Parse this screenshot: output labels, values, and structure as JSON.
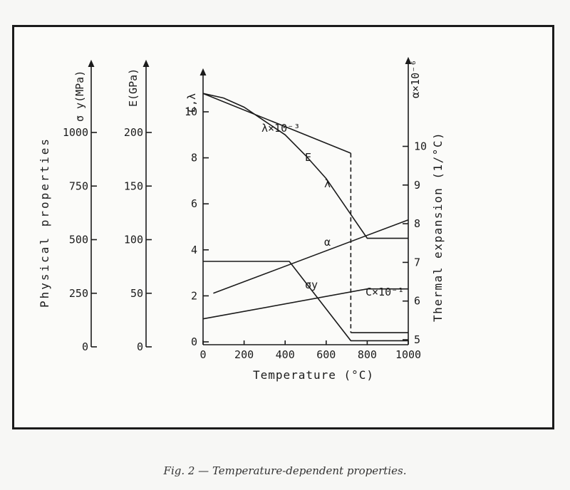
{
  "caption": "Fig. 2 — Temperature-dependent properties.",
  "colors": {
    "ink": "#1b1b1b",
    "frame": "#1b1b1b",
    "paper": "#fbfbf9"
  },
  "labels": {
    "ylabel_left": "Physical properties",
    "ylabel_right": "Thermal expansion (1/°C)",
    "xlabel": "Temperature (°C)",
    "sigma_axis_title": "σ y(MPa)",
    "e_axis_title": "E(GPa)",
    "c_axis_title": "C,λ",
    "alpha_axis_title": "α×10⁻⁶"
  },
  "chart_data": {
    "type": "line",
    "xlabel": "Temperature (°C)",
    "xlim": [
      0,
      1000
    ],
    "x_ticks": [
      "0",
      "200",
      "400",
      "600",
      "800",
      "1000"
    ],
    "axes": [
      {
        "name": "σ y(MPa)",
        "side": "left",
        "ylim": [
          0,
          1000
        ],
        "ticks": [
          "0",
          "250",
          "500",
          "750",
          "1000"
        ]
      },
      {
        "name": "E(GPa)",
        "side": "left",
        "ylim": [
          0,
          200
        ],
        "ticks": [
          "0",
          "50",
          "100",
          "150",
          "200"
        ]
      },
      {
        "name": "C,λ",
        "side": "left",
        "ylim": [
          0,
          11
        ],
        "ticks": [
          "0",
          "2",
          "4",
          "6",
          "8",
          "10"
        ]
      },
      {
        "name": "α×10⁻⁶",
        "side": "right",
        "ylim": [
          5,
          11.5
        ],
        "ticks": [
          "5",
          "6",
          "7",
          "8",
          "9",
          "10"
        ]
      }
    ],
    "series": [
      {
        "name": "E",
        "label": "E",
        "axis": "C,λ",
        "x": [
          0,
          720,
          720,
          1000
        ],
        "y": [
          10.8,
          8.2,
          0.4,
          0.4
        ],
        "dashed_segment": 1
      },
      {
        "name": "λ×10⁻³",
        "label": "λ",
        "axis": "C,λ",
        "x": [
          0,
          100,
          200,
          300,
          400,
          500,
          600,
          700,
          800,
          1000
        ],
        "y": [
          10.8,
          10.6,
          10.2,
          9.6,
          9.0,
          8.1,
          7.1,
          5.8,
          4.5,
          4.5
        ]
      },
      {
        "name": "α",
        "label": "α",
        "axis": "α×10⁻⁶",
        "x": [
          50,
          1000
        ],
        "y": [
          6.2,
          8.1
        ]
      },
      {
        "name": "σy",
        "label": "σy",
        "axis": "C,λ",
        "x": [
          0,
          420,
          720,
          1000
        ],
        "y": [
          3.5,
          3.5,
          0.05,
          0.05
        ]
      },
      {
        "name": "C×10⁻¹",
        "label": "C×10⁻¹",
        "axis": "C,λ",
        "x": [
          0,
          800,
          1000
        ],
        "y": [
          1.0,
          2.3,
          2.3
        ]
      }
    ]
  }
}
